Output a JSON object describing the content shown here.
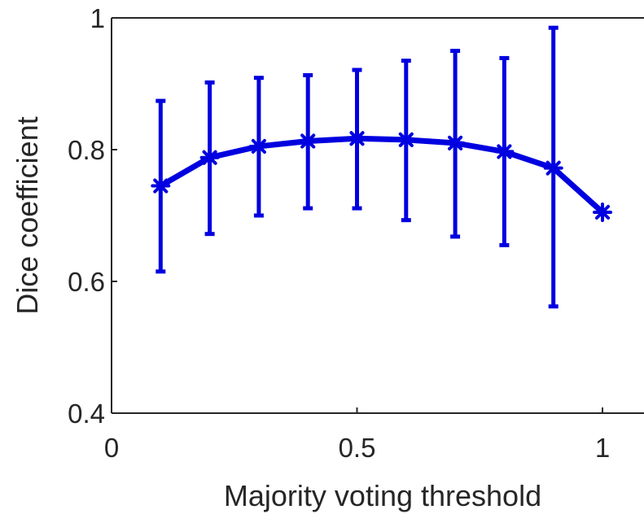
{
  "chart_data": {
    "type": "line",
    "title": "",
    "xlabel": "Majority voting threshold",
    "ylabel": "Dice coefficient",
    "xlim": [
      0,
      1.05
    ],
    "ylim": [
      0.4,
      1.0
    ],
    "xticks": [
      0,
      0.5,
      1
    ],
    "xtick_labels": [
      "0",
      "0.5",
      "1"
    ],
    "yticks": [
      0.4,
      0.6,
      0.8,
      1.0
    ],
    "ytick_labels": [
      "0.4",
      "0.6",
      "0.8",
      "1"
    ],
    "grid": false,
    "series": [
      {
        "color": "#0000e0",
        "marker": "asterisk",
        "x": [
          0.1,
          0.2,
          0.3,
          0.4,
          0.5,
          0.6,
          0.7,
          0.8,
          0.9,
          1.0
        ],
        "y": [
          0.745,
          0.788,
          0.805,
          0.813,
          0.817,
          0.815,
          0.81,
          0.797,
          0.772,
          0.705
        ],
        "error_low": [
          0.615,
          0.672,
          0.7,
          0.711,
          0.711,
          0.693,
          0.668,
          0.655,
          0.562,
          0.705
        ],
        "error_high": [
          0.874,
          0.902,
          0.909,
          0.913,
          0.921,
          0.935,
          0.95,
          0.939,
          0.985,
          0.705
        ]
      }
    ]
  }
}
